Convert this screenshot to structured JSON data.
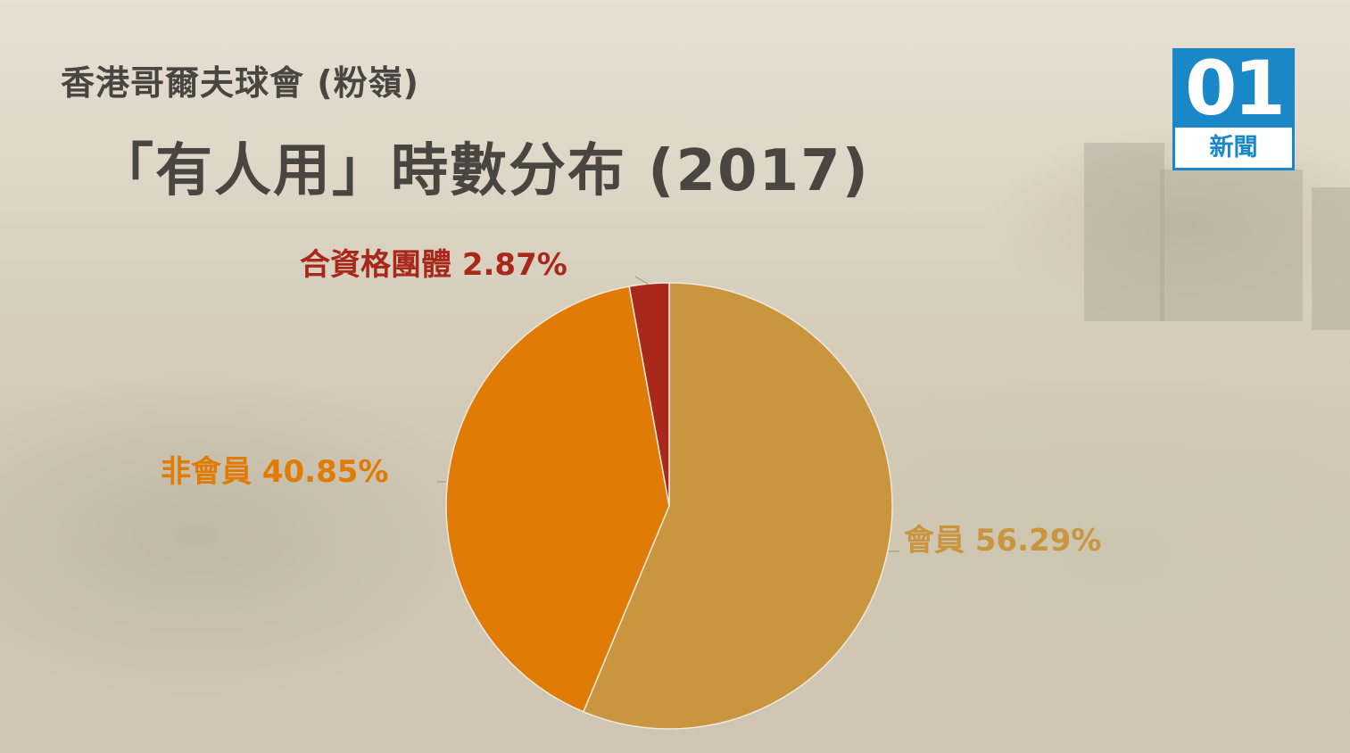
{
  "header": {
    "subtitle": "香港哥爾夫球會 (粉嶺)",
    "title": "「有人用」時數分布 (2017)"
  },
  "logo": {
    "number": "01",
    "text": "新聞"
  },
  "chart_data": {
    "type": "pie",
    "title": "「有人用」時數分布 (2017)",
    "slices": [
      {
        "name": "會員",
        "value": 56.29,
        "label": "會員 56.29%",
        "color": "#c9963f"
      },
      {
        "name": "非會員",
        "value": 40.85,
        "label": "非會員 40.85%",
        "color": "#e07b06"
      },
      {
        "name": "合資格團體",
        "value": 2.87,
        "label": "合資格團體 2.87%",
        "color": "#a8281c"
      }
    ],
    "start_angle_deg": 0,
    "direction": "clockwise",
    "legend": "none"
  },
  "colors": {
    "title_text": "#4a4540",
    "logo_blue": "#1a87c9"
  }
}
